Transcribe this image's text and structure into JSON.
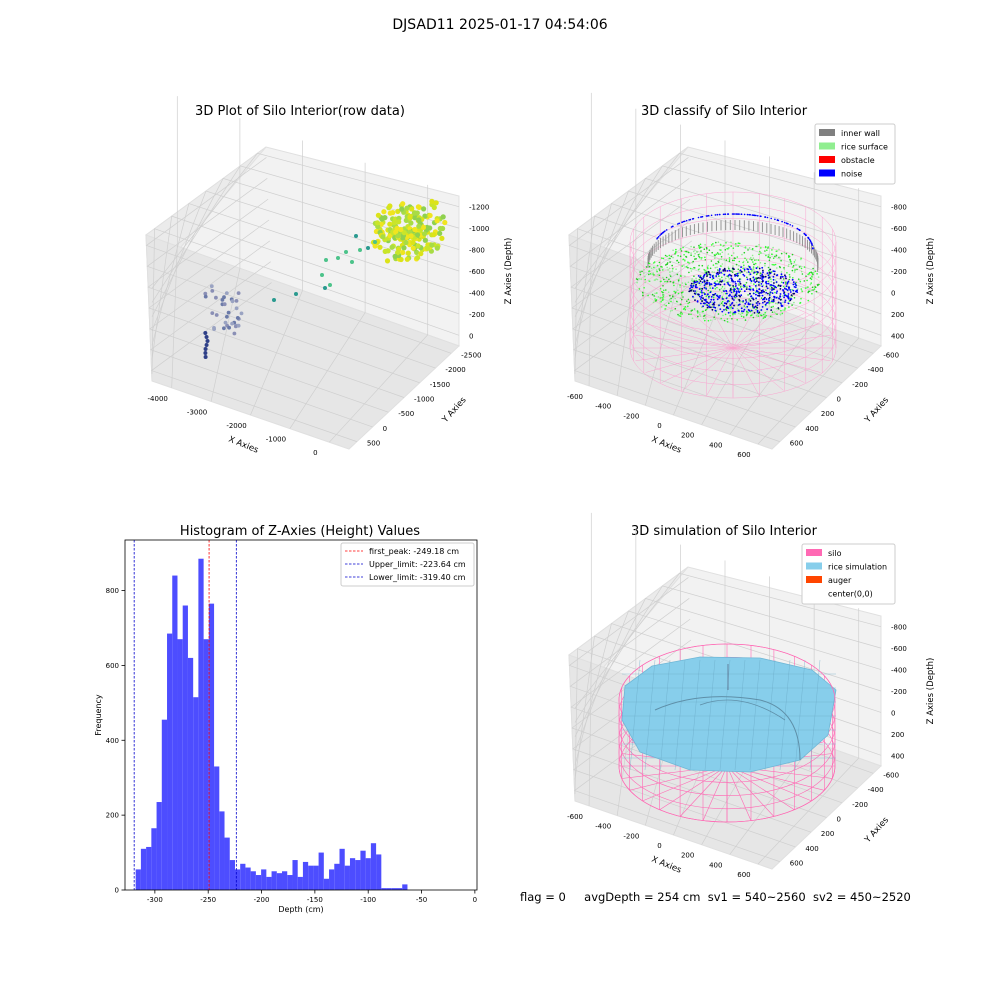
{
  "figure": {
    "suptitle": "DJSAD11 2025-01-17 04:54:06"
  },
  "chart_data": [
    {
      "type": "scatter",
      "title": "3D Plot of Silo Interior(row data)",
      "xlabel": "X Axies",
      "ylabel": "Y Axies",
      "zlabel": "Z Axies (Depth)",
      "x_ticks": [
        "-4000",
        "-3000",
        "-2000",
        "-1000",
        "0"
      ],
      "y_ticks": [
        "500",
        "0",
        "-500",
        "-1000",
        "-1500",
        "-2000",
        "-2500"
      ],
      "z_ticks": [
        "0",
        "-200",
        "-400",
        "-600",
        "-800",
        "-1000",
        "-1200"
      ]
    },
    {
      "type": "scatter",
      "title": "3D classify of Silo Interior",
      "xlabel": "X Axies",
      "ylabel": "Y Axies",
      "zlabel": "Z Axies (Depth)",
      "x_ticks": [
        "-600",
        "-400",
        "-200",
        "0",
        "200",
        "400",
        "600"
      ],
      "y_ticks": [
        "600",
        "400",
        "200",
        "0",
        "-200",
        "-400",
        "-600"
      ],
      "z_ticks": [
        "400",
        "200",
        "0",
        "-200",
        "-400",
        "-600",
        "-800"
      ],
      "legend": [
        {
          "label": "inner wall",
          "color": "#808080"
        },
        {
          "label": "rice surface",
          "color": "#90ee90"
        },
        {
          "label": "obstacle",
          "color": "#ff0000"
        },
        {
          "label": "noise",
          "color": "#0000ff"
        }
      ],
      "legend_position": "top-right"
    },
    {
      "type": "bar",
      "title": "Histogram of Z-Axies (Height) Values",
      "xlabel": "Depth (cm)",
      "ylabel": "Frequency",
      "xlim": [
        -328,
        2
      ],
      "ylim": [
        0,
        935
      ],
      "x_ticks": [
        -300,
        -250,
        -200,
        -150,
        -100,
        -50,
        0
      ],
      "y_ticks": [
        0,
        200,
        400,
        600,
        800
      ],
      "bar_color": "#4d4dff",
      "bin_edges_start": -318,
      "bin_width": 4.9,
      "values": [
        55,
        110,
        115,
        165,
        235,
        455,
        685,
        840,
        670,
        760,
        620,
        515,
        885,
        670,
        765,
        330,
        210,
        140,
        80,
        55,
        70,
        60,
        50,
        40,
        55,
        35,
        50,
        45,
        50,
        40,
        80,
        35,
        75,
        65,
        65,
        100,
        30,
        55,
        70,
        110,
        65,
        85,
        80,
        105,
        85,
        125,
        95,
        5,
        5,
        5,
        5,
        15
      ],
      "vlines": [
        {
          "value": -249.18,
          "label": "first_peak: -249.18 cm",
          "color": "#ff0000"
        },
        {
          "value": -223.64,
          "label": "Upper_limit: -223.64 cm",
          "color": "#0000cc"
        },
        {
          "value": -319.4,
          "label": "Lower_limit: -319.40 cm",
          "color": "#0000cc"
        }
      ],
      "legend_position": "top-right"
    },
    {
      "type": "scatter",
      "title": "3D simulation of Silo Interior",
      "xlabel": "X Axies",
      "ylabel": "Y Axies",
      "zlabel": "Z Axies (Depth)",
      "x_ticks": [
        "-600",
        "-400",
        "-200",
        "0",
        "200",
        "400",
        "600"
      ],
      "y_ticks": [
        "600",
        "400",
        "200",
        "0",
        "-200",
        "-400",
        "-600"
      ],
      "z_ticks": [
        "400",
        "200",
        "0",
        "-200",
        "-400",
        "-600",
        "-800"
      ],
      "legend": [
        {
          "label": "silo",
          "color": "#ff69b4"
        },
        {
          "label": "rice simulation",
          "color": "#87ceeb"
        },
        {
          "label": "auger",
          "color": "#ff4500"
        },
        {
          "label": "center(0,0)",
          "color": "#ffffff"
        }
      ],
      "legend_position": "top-right"
    }
  ],
  "status": {
    "flag": "flag = 0",
    "avg_depth": "avgDepth = 254 cm",
    "sv1": "sv1 = 540~2560",
    "sv2": "sv2 = 450~2520"
  }
}
